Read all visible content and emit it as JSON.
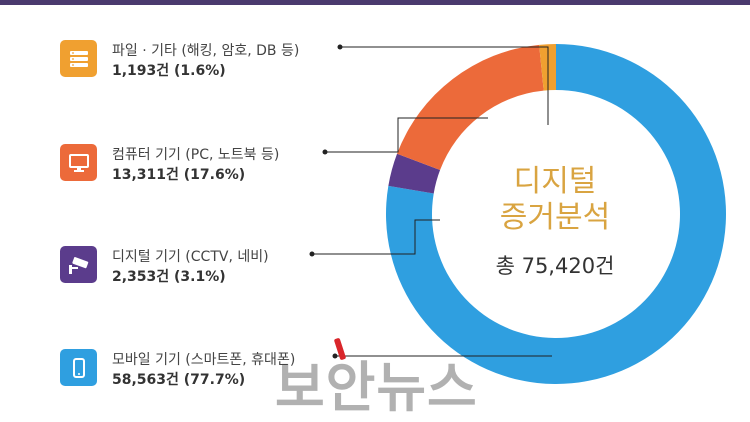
{
  "chart_data": {
    "type": "pie",
    "title": "디지털 증거분석",
    "title_line1": "디지털",
    "title_line2": "증거분석",
    "total_label": "총 75,420건",
    "slices": [
      {
        "label": "파일 · 기타 (해킹, 암호, DB 등)",
        "value_text": "1,193건 (1.6%)",
        "count": 1193,
        "percent": 1.6,
        "color": "#f0a030",
        "icon": "server-icon"
      },
      {
        "label": "컴퓨터 기기 (PC, 노트북 등)",
        "value_text": "13,311건 (17.6%)",
        "count": 13311,
        "percent": 17.6,
        "color": "#ec6a3a",
        "icon": "monitor-icon"
      },
      {
        "label": "디지털 기기 (CCTV, 네비)",
        "value_text": "2,353건 (3.1%)",
        "count": 2353,
        "percent": 3.1,
        "color": "#5b3c8c",
        "icon": "cctv-icon"
      },
      {
        "label": "모바일 기기 (스마트폰, 휴대폰)",
        "value_text": "58,563건 (77.7%)",
        "count": 58563,
        "percent": 77.7,
        "color": "#2f9fe0",
        "icon": "smartphone-icon"
      }
    ]
  },
  "watermark": "보안뉴스",
  "colors": {
    "header_bar": "#4a3a6e",
    "title_gold": "#d9a441"
  }
}
